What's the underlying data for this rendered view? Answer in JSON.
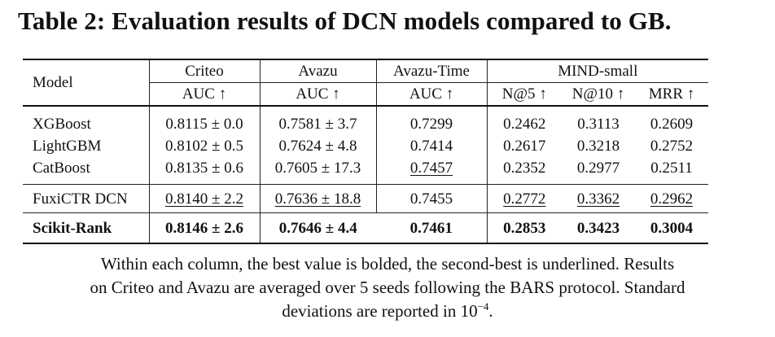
{
  "title": "Table 2: Evaluation results of DCN models compared to GB.",
  "header": {
    "model": "Model",
    "groups": [
      "Criteo",
      "Avazu",
      "Avazu-Time",
      "MIND-small"
    ],
    "metrics": [
      "AUC ↑",
      "AUC ↑",
      "AUC ↑",
      "N@5 ↑",
      "N@10 ↑",
      "MRR ↑"
    ]
  },
  "rows": [
    {
      "model": "XGBoost",
      "criteo": "0.8115 ± 0.0",
      "avazu": "0.7581 ± 3.7",
      "avazu_time": "0.7299",
      "n5": "0.2462",
      "n10": "0.3113",
      "mrr": "0.2609"
    },
    {
      "model": "LightGBM",
      "criteo": "0.8102 ± 0.5",
      "avazu": "0.7624 ± 4.8",
      "avazu_time": "0.7414",
      "n5": "0.2617",
      "n10": "0.3218",
      "mrr": "0.2752"
    },
    {
      "model": "CatBoost",
      "criteo": "0.8135 ± 0.6",
      "avazu": "0.7605 ± 17.3",
      "avazu_time": "0.7457",
      "n5": "0.2352",
      "n10": "0.2977",
      "mrr": "0.2511"
    },
    {
      "model": "FuxiCTR DCN",
      "criteo": "0.8140 ± 2.2",
      "avazu": "0.7636 ± 18.8",
      "avazu_time": "0.7455",
      "n5": "0.2772",
      "n10": "0.3362",
      "mrr": "0.2962"
    },
    {
      "model": "Scikit-Rank",
      "criteo": "0.8146 ± 2.6",
      "avazu": "0.7646 ± 4.4",
      "avazu_time": "0.7461",
      "n5": "0.2853",
      "n10": "0.3423",
      "mrr": "0.3004"
    }
  ],
  "caption": {
    "line1": "Within each column, the best value is bolded, the second-best is underlined. Results",
    "line2": "on Criteo and Avazu are averaged over 5 seeds following the BARS protocol. Standard",
    "line3_pre": "deviations are reported in 10",
    "line3_exp": "−4",
    "line3_post": "."
  }
}
